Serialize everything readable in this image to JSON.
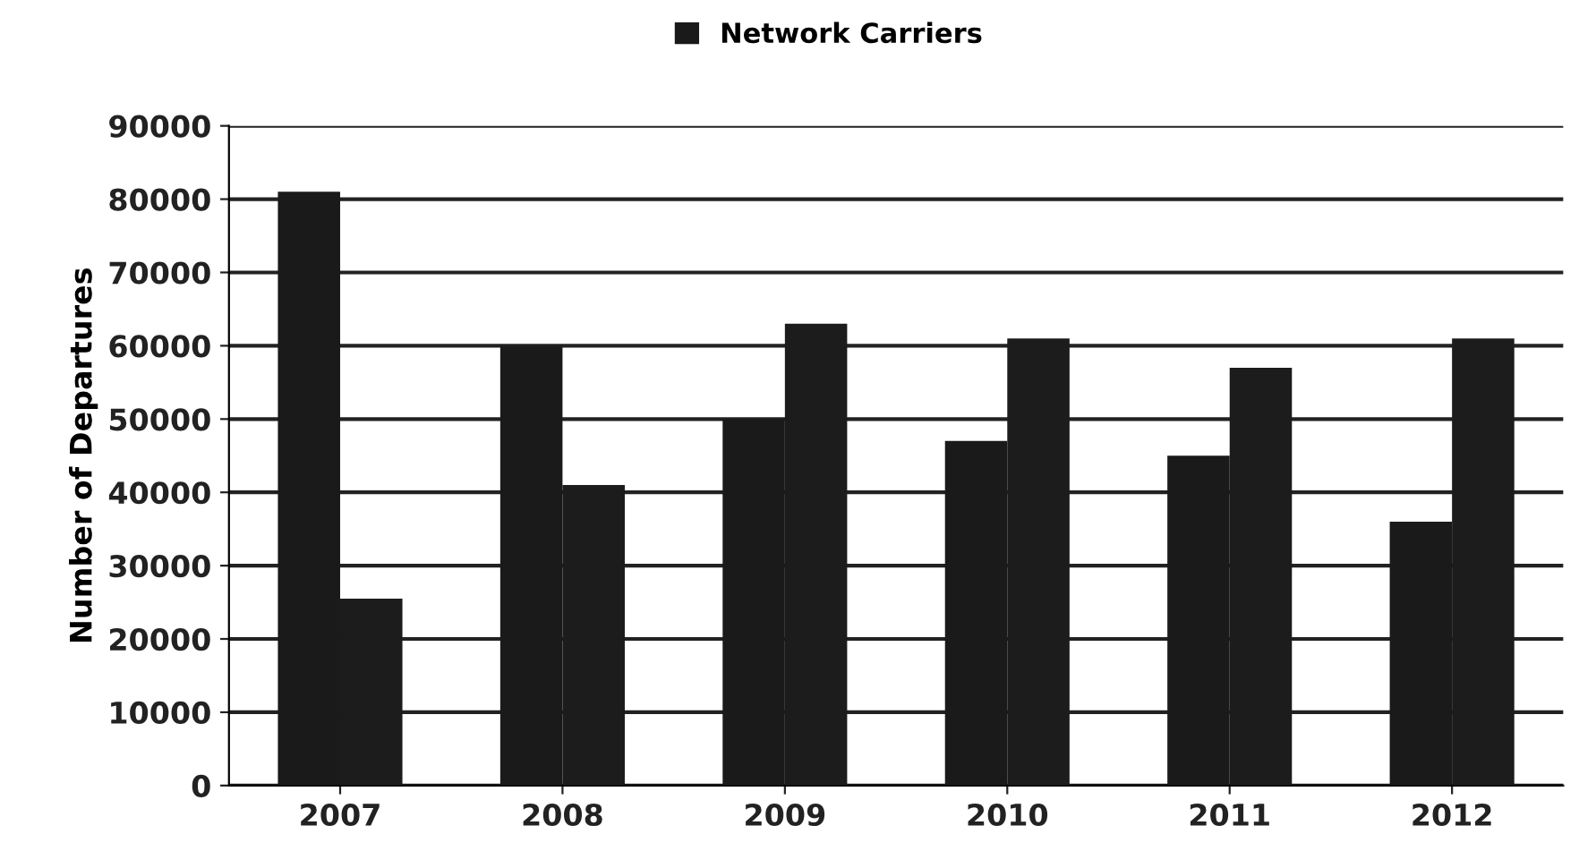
{
  "chart_data": {
    "type": "bar",
    "ylabel": "Number of Departures",
    "categories": [
      "2007",
      "2008",
      "2009",
      "2010",
      "2011",
      "2012"
    ],
    "series": [
      {
        "name": "Network Carriers",
        "color": "#1a1a1a",
        "values": [
          81000,
          60000,
          50000,
          47000,
          45000,
          36000
        ]
      },
      {
        "color": "#1c1c1c",
        "values": [
          25500,
          41000,
          63000,
          61000,
          57000,
          61000
        ]
      }
    ],
    "ylim": [
      0,
      90000
    ],
    "yticks": [
      0,
      10000,
      20000,
      30000,
      40000,
      50000,
      60000,
      70000,
      80000,
      90000
    ],
    "grid": "y",
    "legend": "top"
  }
}
